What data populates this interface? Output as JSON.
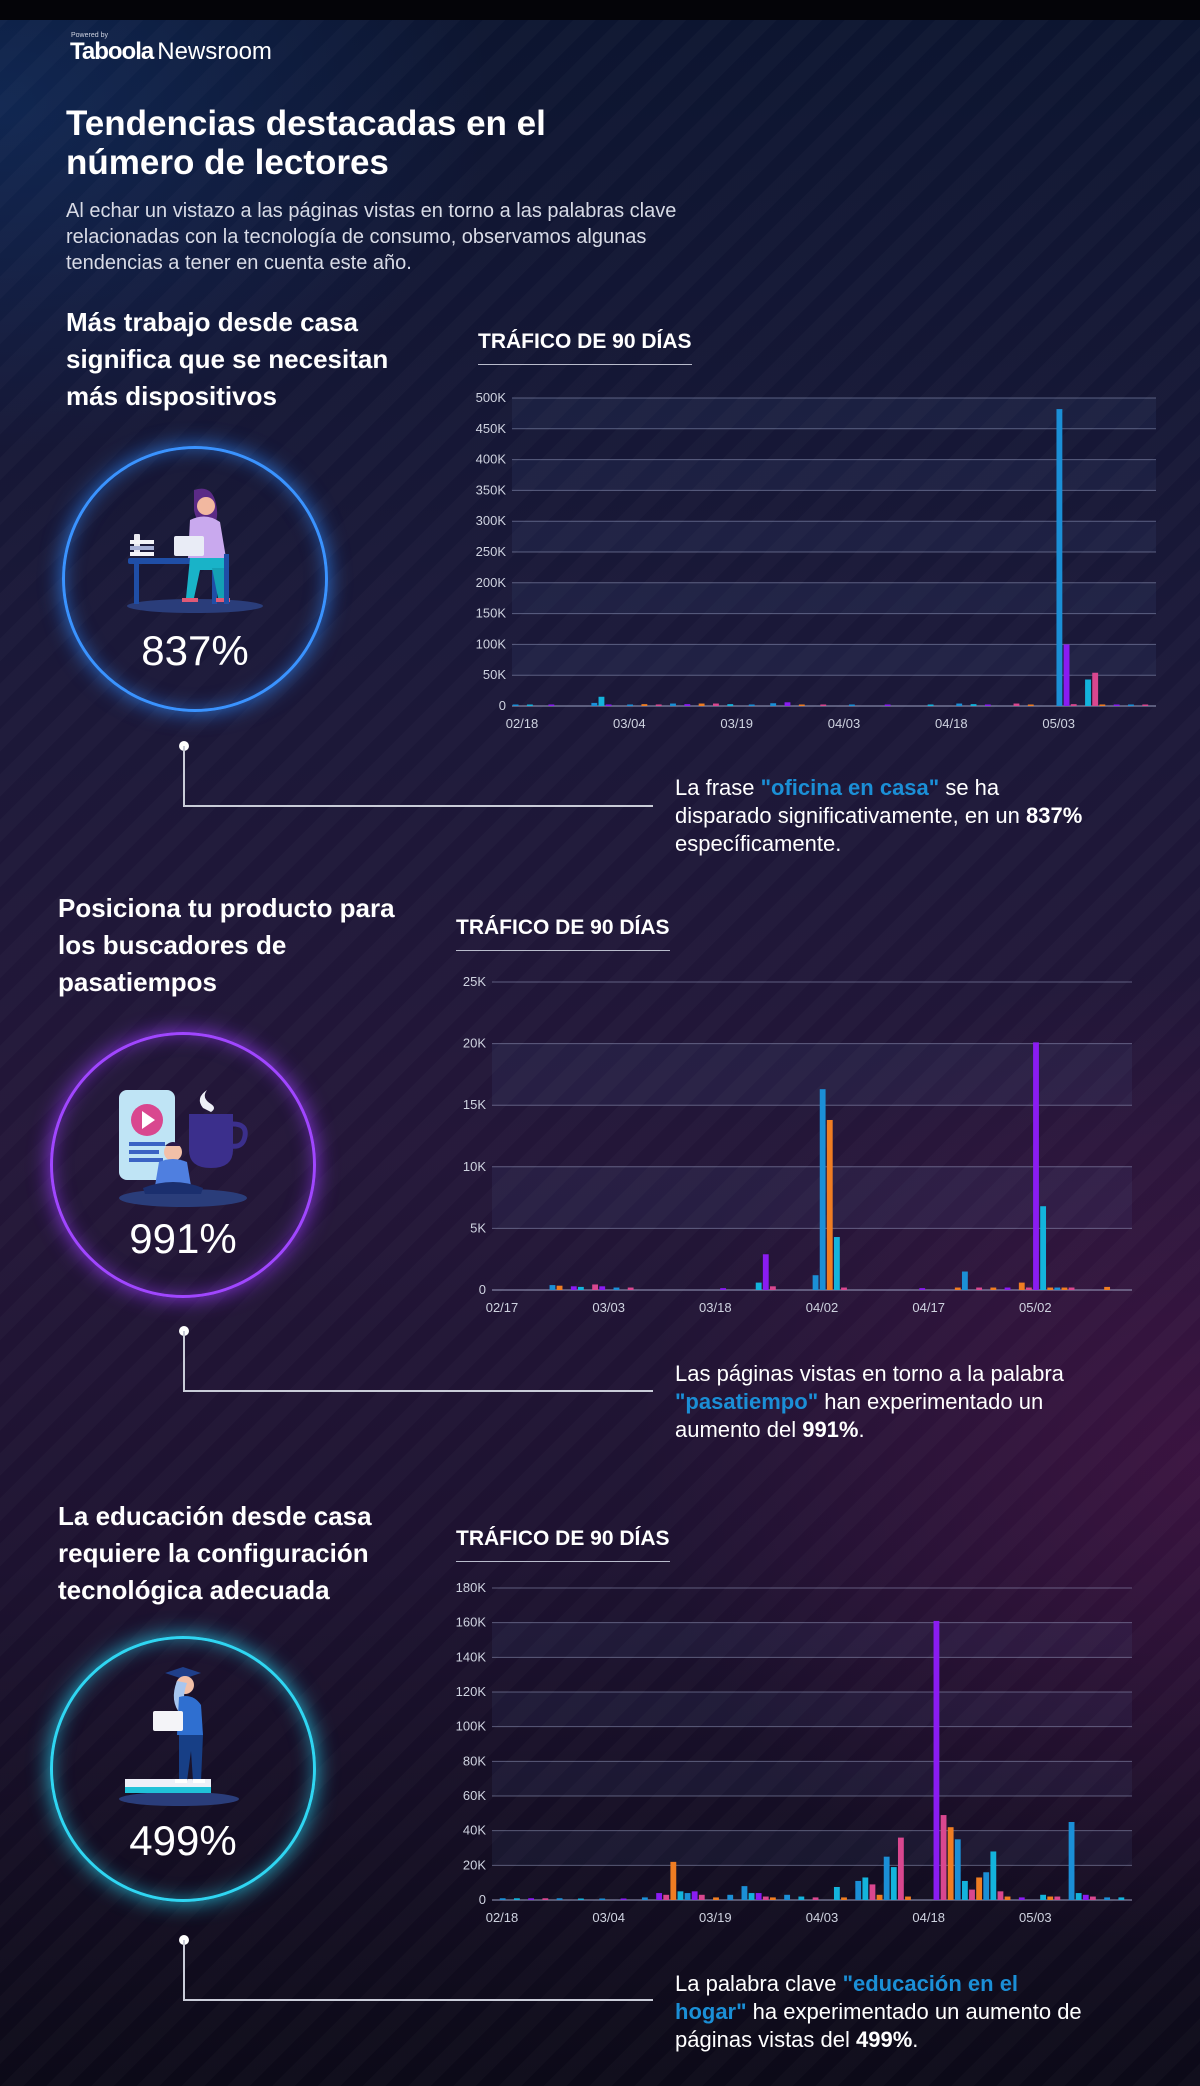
{
  "brand": {
    "powered": "Powered by",
    "logo_bold": "Taboola",
    "logo_regular": "Newsroom"
  },
  "header": {
    "title": "Tendencias destacadas en el número de lectores",
    "intro": "Al echar un vistazo a las páginas vistas en torno a las palabras clave relacionadas con la tecnología de consumo, observamos algunas tendencias a tener en cuenta este año."
  },
  "colors": {
    "blue": "#1b8fd6",
    "purple": "#8a1cf2",
    "orange": "#ef7d22",
    "pink": "#d9478f",
    "cyan": "#13b4dc",
    "ring1": "#2f8cff",
    "ring2": "#9b3cff",
    "ring3": "#27d3f0"
  },
  "sections": [
    {
      "title": "Más trabajo desde casa significa que se necesitan más dispositivos",
      "illustration": "woman-working-at-desk-icon",
      "percent": "837%",
      "chart_title": "TRÁFICO DE 90 DÍAS",
      "note": {
        "pre": "La frase ",
        "keyword": "\"oficina en casa\"",
        "mid": " se ha disparado significativamente, en un ",
        "number": "837%",
        "post": " específicamente."
      }
    },
    {
      "title": "Posiciona tu producto para los buscadores de pasatiempos",
      "illustration": "video-and-coffee-hobby-icon",
      "percent": "991%",
      "chart_title": "TRÁFICO DE 90 DÍAS",
      "note": {
        "pre": "Las páginas vistas en torno a la palabra ",
        "keyword": "\"pasatiempo\"",
        "mid": " han experimentado un aumento del ",
        "number": "991%",
        "post": "."
      }
    },
    {
      "title": "La educación desde casa requiere la configuración tecnológica adecuada",
      "illustration": "student-with-laptop-on-books-icon",
      "percent": "499%",
      "chart_title": "TRÁFICO DE 90 DÍAS",
      "note": {
        "pre": "La palabra clave ",
        "keyword": "\"educación en el hogar\"",
        "mid": " ha experimentado un aumento de páginas vistas del ",
        "number": "499%",
        "post": "."
      }
    }
  ],
  "chart_data": [
    {
      "type": "bar",
      "title": "TRÁFICO DE 90 DÍAS",
      "ylim": [
        0,
        500000
      ],
      "yticks": [
        0,
        50000,
        100000,
        150000,
        200000,
        250000,
        300000,
        350000,
        400000,
        450000,
        500000
      ],
      "ytick_labels": [
        "0",
        "50K",
        "100K",
        "150K",
        "200K",
        "250K",
        "300K",
        "350K",
        "400K",
        "450K",
        "500K"
      ],
      "xtick_labels": [
        "02/18",
        "03/04",
        "03/19",
        "04/03",
        "04/18",
        "05/03"
      ],
      "n_days": 90,
      "xtick_days": [
        0,
        15,
        30,
        45,
        60,
        75
      ],
      "grid": true,
      "bars": [
        {
          "day": 0,
          "value": 1500,
          "color": "blue"
        },
        {
          "day": 2,
          "value": 1500,
          "color": "cyan"
        },
        {
          "day": 5,
          "value": 1000,
          "color": "purple"
        },
        {
          "day": 11,
          "value": 5000,
          "color": "blue"
        },
        {
          "day": 12,
          "value": 15000,
          "color": "cyan"
        },
        {
          "day": 13,
          "value": 2000,
          "color": "purple"
        },
        {
          "day": 16,
          "value": 2000,
          "color": "blue"
        },
        {
          "day": 18,
          "value": 3000,
          "color": "orange"
        },
        {
          "day": 20,
          "value": 2500,
          "color": "pink"
        },
        {
          "day": 22,
          "value": 4000,
          "color": "blue"
        },
        {
          "day": 24,
          "value": 3000,
          "color": "purple"
        },
        {
          "day": 26,
          "value": 4000,
          "color": "orange"
        },
        {
          "day": 28,
          "value": 4000,
          "color": "pink"
        },
        {
          "day": 30,
          "value": 3000,
          "color": "cyan"
        },
        {
          "day": 33,
          "value": 2000,
          "color": "blue"
        },
        {
          "day": 36,
          "value": 4500,
          "color": "blue"
        },
        {
          "day": 38,
          "value": 6000,
          "color": "purple"
        },
        {
          "day": 40,
          "value": 2000,
          "color": "orange"
        },
        {
          "day": 43,
          "value": 1500,
          "color": "pink"
        },
        {
          "day": 47,
          "value": 1500,
          "color": "blue"
        },
        {
          "day": 52,
          "value": 1000,
          "color": "purple"
        },
        {
          "day": 58,
          "value": 1500,
          "color": "cyan"
        },
        {
          "day": 62,
          "value": 4000,
          "color": "blue"
        },
        {
          "day": 64,
          "value": 3000,
          "color": "cyan"
        },
        {
          "day": 66,
          "value": 2000,
          "color": "purple"
        },
        {
          "day": 70,
          "value": 4000,
          "color": "pink"
        },
        {
          "day": 72,
          "value": 2000,
          "color": "orange"
        },
        {
          "day": 76,
          "value": 482000,
          "color": "blue"
        },
        {
          "day": 77,
          "value": 100000,
          "color": "purple"
        },
        {
          "day": 78,
          "value": 3000,
          "color": "pink"
        },
        {
          "day": 80,
          "value": 43000,
          "color": "cyan"
        },
        {
          "day": 81,
          "value": 54000,
          "color": "pink"
        },
        {
          "day": 82,
          "value": 2500,
          "color": "orange"
        },
        {
          "day": 84,
          "value": 2000,
          "color": "purple"
        },
        {
          "day": 86,
          "value": 2000,
          "color": "blue"
        },
        {
          "day": 88,
          "value": 1500,
          "color": "pink"
        }
      ]
    },
    {
      "type": "bar",
      "title": "TRÁFICO DE 90 DÍAS",
      "ylim": [
        0,
        25000
      ],
      "yticks": [
        0,
        5000,
        10000,
        15000,
        20000,
        25000
      ],
      "ytick_labels": [
        "0",
        "5K",
        "10K",
        "15K",
        "20K",
        "25K"
      ],
      "xtick_labels": [
        "02/17",
        "03/03",
        "03/18",
        "04/02",
        "04/17",
        "05/02"
      ],
      "n_days": 90,
      "xtick_days": [
        0,
        15,
        30,
        45,
        60,
        75
      ],
      "grid": true,
      "bars": [
        {
          "day": 8,
          "value": 400,
          "color": "blue"
        },
        {
          "day": 9,
          "value": 350,
          "color": "orange"
        },
        {
          "day": 11,
          "value": 300,
          "color": "purple"
        },
        {
          "day": 12,
          "value": 250,
          "color": "cyan"
        },
        {
          "day": 14,
          "value": 450,
          "color": "pink"
        },
        {
          "day": 15,
          "value": 300,
          "color": "purple"
        },
        {
          "day": 17,
          "value": 200,
          "color": "blue"
        },
        {
          "day": 19,
          "value": 200,
          "color": "pink"
        },
        {
          "day": 32,
          "value": 150,
          "color": "purple"
        },
        {
          "day": 38,
          "value": 2900,
          "color": "purple"
        },
        {
          "day": 37,
          "value": 600,
          "color": "cyan"
        },
        {
          "day": 39,
          "value": 300,
          "color": "pink"
        },
        {
          "day": 45,
          "value": 1200,
          "color": "blue"
        },
        {
          "day": 46,
          "value": 16300,
          "color": "blue"
        },
        {
          "day": 47,
          "value": 13800,
          "color": "orange"
        },
        {
          "day": 48,
          "value": 4300,
          "color": "cyan"
        },
        {
          "day": 49,
          "value": 200,
          "color": "pink"
        },
        {
          "day": 60,
          "value": 150,
          "color": "purple"
        },
        {
          "day": 65,
          "value": 200,
          "color": "orange"
        },
        {
          "day": 66,
          "value": 1500,
          "color": "blue"
        },
        {
          "day": 68,
          "value": 200,
          "color": "pink"
        },
        {
          "day": 70,
          "value": 200,
          "color": "orange"
        },
        {
          "day": 72,
          "value": 200,
          "color": "purple"
        },
        {
          "day": 74,
          "value": 600,
          "color": "orange"
        },
        {
          "day": 75,
          "value": 200,
          "color": "pink"
        },
        {
          "day": 76,
          "value": 20100,
          "color": "purple"
        },
        {
          "day": 77,
          "value": 6800,
          "color": "cyan"
        },
        {
          "day": 78,
          "value": 200,
          "color": "orange"
        },
        {
          "day": 79,
          "value": 200,
          "color": "blue"
        },
        {
          "day": 80,
          "value": 200,
          "color": "orange"
        },
        {
          "day": 81,
          "value": 200,
          "color": "pink"
        },
        {
          "day": 86,
          "value": 250,
          "color": "orange"
        }
      ]
    },
    {
      "type": "bar",
      "title": "TRÁFICO DE 90 DÍAS",
      "ylim": [
        0,
        180000
      ],
      "yticks": [
        0,
        20000,
        40000,
        60000,
        80000,
        100000,
        120000,
        140000,
        160000,
        180000
      ],
      "ytick_labels": [
        "0",
        "20K",
        "40K",
        "60K",
        "80K",
        "100K",
        "120K",
        "140K",
        "160K",
        "180K"
      ],
      "xtick_labels": [
        "02/18",
        "03/04",
        "03/19",
        "04/03",
        "04/18",
        "05/03"
      ],
      "n_days": 90,
      "xtick_days": [
        0,
        15,
        30,
        45,
        60,
        75
      ],
      "grid": true,
      "bars": [
        {
          "day": 1,
          "value": 1000,
          "color": "blue"
        },
        {
          "day": 3,
          "value": 1000,
          "color": "cyan"
        },
        {
          "day": 5,
          "value": 1000,
          "color": "purple"
        },
        {
          "day": 7,
          "value": 1000,
          "color": "pink"
        },
        {
          "day": 9,
          "value": 1000,
          "color": "blue"
        },
        {
          "day": 12,
          "value": 800,
          "color": "cyan"
        },
        {
          "day": 15,
          "value": 800,
          "color": "blue"
        },
        {
          "day": 18,
          "value": 800,
          "color": "purple"
        },
        {
          "day": 21,
          "value": 1500,
          "color": "blue"
        },
        {
          "day": 23,
          "value": 4000,
          "color": "purple"
        },
        {
          "day": 24,
          "value": 3000,
          "color": "pink"
        },
        {
          "day": 25,
          "value": 22000,
          "color": "orange"
        },
        {
          "day": 26,
          "value": 5000,
          "color": "cyan"
        },
        {
          "day": 27,
          "value": 4000,
          "color": "blue"
        },
        {
          "day": 28,
          "value": 5000,
          "color": "purple"
        },
        {
          "day": 29,
          "value": 3000,
          "color": "pink"
        },
        {
          "day": 31,
          "value": 1500,
          "color": "orange"
        },
        {
          "day": 33,
          "value": 3000,
          "color": "blue"
        },
        {
          "day": 35,
          "value": 8000,
          "color": "blue"
        },
        {
          "day": 36,
          "value": 4000,
          "color": "cyan"
        },
        {
          "day": 37,
          "value": 4000,
          "color": "purple"
        },
        {
          "day": 38,
          "value": 2000,
          "color": "pink"
        },
        {
          "day": 39,
          "value": 1500,
          "color": "orange"
        },
        {
          "day": 41,
          "value": 3000,
          "color": "blue"
        },
        {
          "day": 43,
          "value": 2000,
          "color": "cyan"
        },
        {
          "day": 45,
          "value": 1500,
          "color": "pink"
        },
        {
          "day": 48,
          "value": 7500,
          "color": "cyan"
        },
        {
          "day": 49,
          "value": 1500,
          "color": "orange"
        },
        {
          "day": 51,
          "value": 11000,
          "color": "blue"
        },
        {
          "day": 52,
          "value": 13000,
          "color": "cyan"
        },
        {
          "day": 53,
          "value": 9000,
          "color": "pink"
        },
        {
          "day": 54,
          "value": 3000,
          "color": "orange"
        },
        {
          "day": 55,
          "value": 25000,
          "color": "blue"
        },
        {
          "day": 56,
          "value": 19000,
          "color": "cyan"
        },
        {
          "day": 57,
          "value": 36000,
          "color": "pink"
        },
        {
          "day": 58,
          "value": 2000,
          "color": "orange"
        },
        {
          "day": 62,
          "value": 161000,
          "color": "purple"
        },
        {
          "day": 63,
          "value": 49000,
          "color": "pink"
        },
        {
          "day": 64,
          "value": 42000,
          "color": "orange"
        },
        {
          "day": 65,
          "value": 35000,
          "color": "blue"
        },
        {
          "day": 66,
          "value": 11000,
          "color": "cyan"
        },
        {
          "day": 67,
          "value": 6000,
          "color": "pink"
        },
        {
          "day": 68,
          "value": 13000,
          "color": "orange"
        },
        {
          "day": 69,
          "value": 16000,
          "color": "blue"
        },
        {
          "day": 70,
          "value": 28000,
          "color": "cyan"
        },
        {
          "day": 71,
          "value": 5000,
          "color": "pink"
        },
        {
          "day": 72,
          "value": 2000,
          "color": "orange"
        },
        {
          "day": 74,
          "value": 1500,
          "color": "purple"
        },
        {
          "day": 77,
          "value": 3000,
          "color": "cyan"
        },
        {
          "day": 78,
          "value": 2000,
          "color": "orange"
        },
        {
          "day": 79,
          "value": 2000,
          "color": "pink"
        },
        {
          "day": 81,
          "value": 45000,
          "color": "blue"
        },
        {
          "day": 82,
          "value": 4000,
          "color": "cyan"
        },
        {
          "day": 83,
          "value": 3000,
          "color": "purple"
        },
        {
          "day": 84,
          "value": 2000,
          "color": "pink"
        },
        {
          "day": 86,
          "value": 1500,
          "color": "blue"
        },
        {
          "day": 88,
          "value": 1500,
          "color": "cyan"
        }
      ]
    }
  ]
}
